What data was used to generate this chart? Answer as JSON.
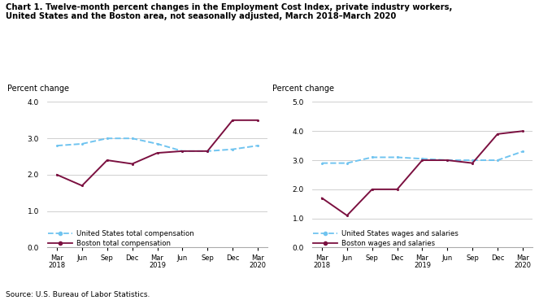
{
  "title_line1": "Chart 1. Twelve-month percent changes in the Employment Cost Index, private industry workers,",
  "title_line2": "United States and the Boston area, not seasonally adjusted, March 2018–March 2020",
  "source": "Source: U.S. Bureau of Labor Statistics.",
  "x_labels": [
    "Mar\n2018",
    "Jun",
    "Sep",
    "Dec",
    "Mar\n2019",
    "Jun",
    "Sep",
    "Dec",
    "Mar\n2020"
  ],
  "left_chart": {
    "ylabel": "Percent change",
    "ylim": [
      0.0,
      4.0
    ],
    "yticks": [
      0.0,
      1.0,
      2.0,
      3.0,
      4.0
    ],
    "us_total_comp": [
      2.8,
      2.85,
      3.0,
      3.0,
      2.85,
      2.65,
      2.65,
      2.7,
      2.8
    ],
    "boston_total_comp": [
      2.0,
      1.7,
      2.4,
      2.3,
      2.6,
      2.65,
      2.65,
      3.5,
      3.5
    ],
    "legend1": "United States total compensation",
    "legend2": "Boston total compensation"
  },
  "right_chart": {
    "ylabel": "Percent change",
    "ylim": [
      0.0,
      5.0
    ],
    "yticks": [
      0.0,
      1.0,
      2.0,
      3.0,
      4.0,
      5.0
    ],
    "us_wages_salaries": [
      2.9,
      2.9,
      3.1,
      3.1,
      3.05,
      3.0,
      3.0,
      3.0,
      3.3
    ],
    "boston_wages_salaries": [
      1.7,
      1.1,
      2.0,
      2.0,
      3.0,
      3.0,
      2.9,
      3.9,
      4.0
    ],
    "legend1": "United States wages and salaries",
    "legend2": "Boston wages and salaries"
  },
  "us_color": "#70c4f0",
  "boston_color": "#7b1040",
  "us_linestyle": "--",
  "boston_linestyle": "-",
  "linewidth": 1.4,
  "grid_color": "#c8c8c8",
  "background_color": "#ffffff"
}
